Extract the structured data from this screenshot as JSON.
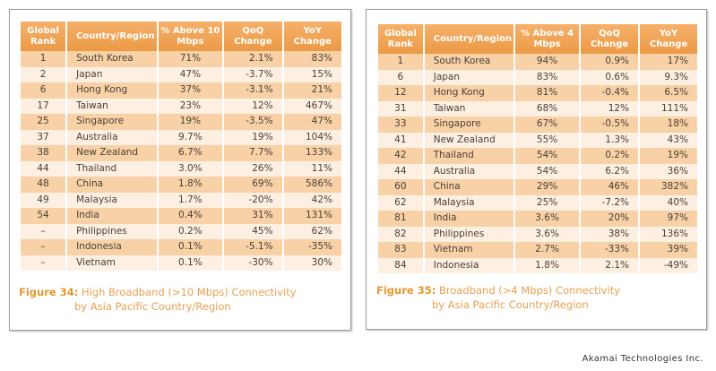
{
  "headers_fig34": [
    "Global Rank",
    "Country/Region",
    "% Above 10 Mbps",
    "QoQ Change",
    "YoY Change"
  ],
  "headers_fig35": [
    "Global Rank",
    "Country/Region",
    "% Above 4 Mbps",
    "QoQ Change",
    "YoY Change"
  ],
  "fig34": {
    "label": "Figure 34:",
    "title_line1": "High Broadband (>10 Mbps) Connectivity",
    "title_line2": "by Asia Pacific Country/Region",
    "rows": [
      [
        "1",
        "South Korea",
        "71%",
        "2.1%",
        "83%"
      ],
      [
        "2",
        "Japan",
        "47%",
        "-3.7%",
        "15%"
      ],
      [
        "6",
        "Hong Kong",
        "37%",
        "-3.1%",
        "21%"
      ],
      [
        "17",
        "Taiwan",
        "23%",
        "12%",
        "467%"
      ],
      [
        "25",
        "Singapore",
        "19%",
        "-3.5%",
        "47%"
      ],
      [
        "37",
        "Australia",
        "9.7%",
        "19%",
        "104%"
      ],
      [
        "38",
        "New Zealand",
        "6.7%",
        "7.7%",
        "133%"
      ],
      [
        "44",
        "Thailand",
        "3.0%",
        "26%",
        "11%"
      ],
      [
        "48",
        "China",
        "1.8%",
        "69%",
        "586%"
      ],
      [
        "49",
        "Malaysia",
        "1.7%",
        "-20%",
        "42%"
      ],
      [
        "54",
        "India",
        "0.4%",
        "31%",
        "131%"
      ],
      [
        "–",
        "Philippines",
        "0.2%",
        "45%",
        "62%"
      ],
      [
        "–",
        "Indonesia",
        "0.1%",
        "-5.1%",
        "-35%"
      ],
      [
        "–",
        "Vietnam",
        "0.1%",
        "-30%",
        "30%"
      ]
    ]
  },
  "fig35": {
    "label": "Figure 35:",
    "title_line1": "Broadband (>4 Mbps) Connectivity",
    "title_line2": "by Asia Pacific Country/Region",
    "rows": [
      [
        "1",
        "South Korea",
        "94%",
        "0.9%",
        "17%"
      ],
      [
        "6",
        "Japan",
        "83%",
        "0.6%",
        "9.3%"
      ],
      [
        "12",
        "Hong Kong",
        "81%",
        "-0.4%",
        "6.5%"
      ],
      [
        "31",
        "Taiwan",
        "68%",
        "12%",
        "111%"
      ],
      [
        "33",
        "Singapore",
        "67%",
        "-0.5%",
        "18%"
      ],
      [
        "41",
        "New Zealand",
        "55%",
        "1.3%",
        "43%"
      ],
      [
        "42",
        "Thailand",
        "54%",
        "0.2%",
        "19%"
      ],
      [
        "44",
        "Australia",
        "54%",
        "6.2%",
        "36%"
      ],
      [
        "60",
        "China",
        "29%",
        "46%",
        "382%"
      ],
      [
        "62",
        "Malaysia",
        "25%",
        "-7.2%",
        "40%"
      ],
      [
        "81",
        "India",
        "3.6%",
        "20%",
        "97%"
      ],
      [
        "82",
        "Philippines",
        "3.6%",
        "38%",
        "136%"
      ],
      [
        "83",
        "Vietnam",
        "2.7%",
        "-33%",
        "39%"
      ],
      [
        "84",
        "Indonesia",
        "1.8%",
        "2.1%",
        "-49%"
      ]
    ]
  },
  "credit": "Akamai Technologies Inc.",
  "colors": {
    "header": "#ec9a45",
    "row_odd": "#f8d1a7",
    "row_even": "#fdefe2",
    "caption": "#e8952f"
  }
}
